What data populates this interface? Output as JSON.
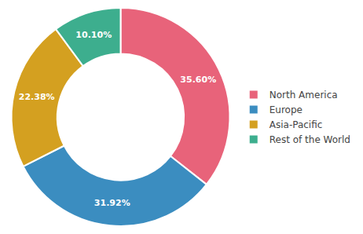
{
  "chart_data": {
    "type": "donut",
    "categories": [
      "North America",
      "Europe",
      "Asia-Pacific",
      "Rest of the World"
    ],
    "values": [
      35.6,
      31.92,
      22.38,
      10.1
    ],
    "value_labels": [
      "35.60%",
      "31.92%",
      "22.38%",
      "10.10%"
    ],
    "colors": [
      "#E8637A",
      "#3B8DC0",
      "#D4A020",
      "#3DAE8E"
    ],
    "data_labels": true,
    "legend": "right"
  }
}
